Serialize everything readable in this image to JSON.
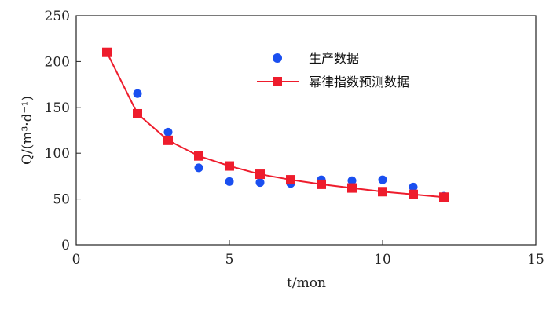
{
  "chart_data": {
    "type": "scatter",
    "xlabel": "t/mon",
    "ylabel": "Q/(m³·d⁻¹)",
    "xlim": [
      0,
      15
    ],
    "ylim": [
      0,
      250
    ],
    "x_ticks": [
      "0",
      "5",
      "10",
      "15"
    ],
    "y_ticks": [
      "0",
      "50",
      "100",
      "150",
      "200",
      "250"
    ],
    "grid": false,
    "legend_position": "top-center",
    "series": [
      {
        "name": "生产数据",
        "kind": "scatter",
        "marker": "circle",
        "color": "#1a4ff0",
        "x": [
          1,
          2,
          3,
          4,
          5,
          6,
          7,
          8,
          9,
          10,
          11,
          12
        ],
        "y": [
          210,
          165,
          123,
          84,
          69,
          68,
          67,
          71,
          70,
          71,
          63,
          53
        ]
      },
      {
        "name": "幂律指数预测数据",
        "kind": "line",
        "marker": "square",
        "color": "#ee1c2c",
        "x": [
          1,
          2,
          3,
          4,
          5,
          6,
          7,
          8,
          9,
          10,
          11,
          12
        ],
        "y": [
          210,
          143,
          114,
          97,
          86,
          77,
          71,
          66,
          62,
          58,
          55,
          52
        ]
      }
    ]
  }
}
